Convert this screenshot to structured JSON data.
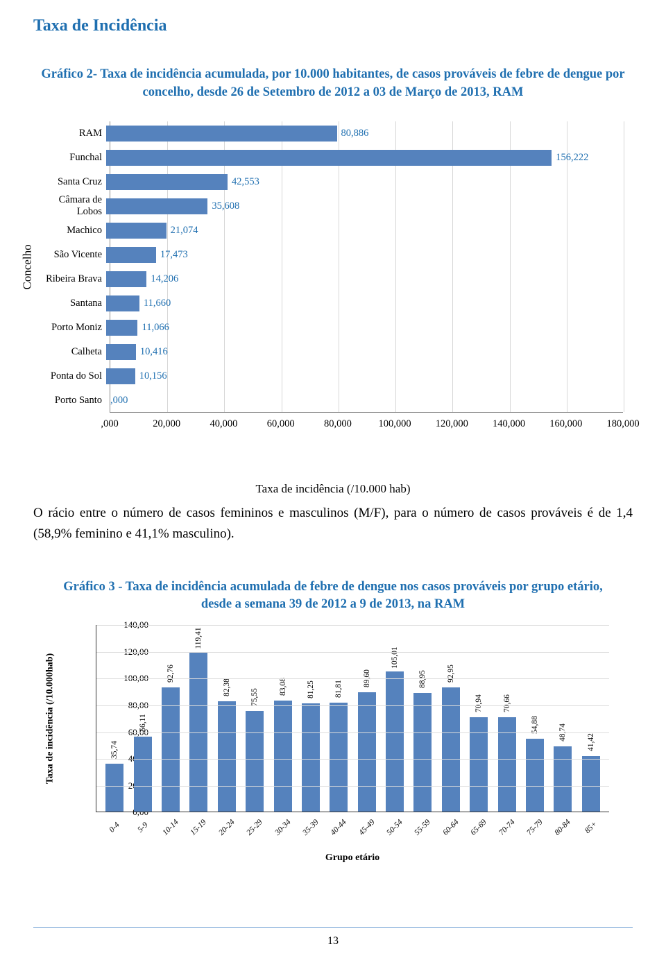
{
  "section_title": "Taxa de Incidência",
  "chart2": {
    "type": "bar-horizontal",
    "caption": "Gráfico 2- Taxa de incidência acumulada, por 10.000 habitantes, de casos prováveis de febre de dengue por concelho, desde 26 de Setembro de 2012 a 03 de Março de 2013, RAM",
    "ylabel": "Concelho",
    "xlabel": "Taxa de incidência (/10.000 hab)",
    "categories": [
      "RAM",
      "Funchal",
      "Santa Cruz",
      "Câmara de Lobos",
      "Machico",
      "São Vicente",
      "Ribeira Brava",
      "Santana",
      "Porto Moniz",
      "Calheta",
      "Ponta do Sol",
      "Porto Santo"
    ],
    "values": [
      80.886,
      156.222,
      42.553,
      35.608,
      21.074,
      17.473,
      14.206,
      11.66,
      11.066,
      10.416,
      10.156,
      0.0
    ],
    "value_labels": [
      "80,886",
      "156,222",
      "42,553",
      "35,608",
      "21,074",
      "17,473",
      "14,206",
      "11,660",
      "11,066",
      "10,416",
      "10,156",
      ",000"
    ],
    "bar_color": "#5582bd",
    "value_label_color": "#1f6fb0",
    "xlim": [
      0,
      180
    ],
    "xtick_step": 20,
    "xtick_labels": [
      ",000",
      "20,000",
      "40,000",
      "60,000",
      "80,000",
      "100,000",
      "120,000",
      "140,000",
      "160,000",
      "180,000"
    ],
    "category_fontsize": 14.5,
    "value_fontsize": 14.5,
    "axis_label_fontsize": 17,
    "grid_color": "#d7d7d7",
    "border_color": "#888888",
    "background_color": "#ffffff"
  },
  "body_paragraph": "O rácio entre o número de casos femininos e masculinos (M/F), para o número de casos prováveis é de 1,4 (58,9% feminino e 41,1% masculino).",
  "chart3": {
    "type": "bar",
    "caption": "Gráfico 3 - Taxa de incidência acumulada de febre de dengue nos casos prováveis por grupo etário, desde a semana 39 de 2012 a 9 de 2013, na RAM",
    "ylabel": "Taxa de incidência (/10.000hab)",
    "xlabel": "Grupo etário",
    "categories": [
      "0-4",
      "5-9",
      "10-14",
      "15-19",
      "20-24",
      "25-29",
      "30-34",
      "35-39",
      "40-44",
      "45-49",
      "50-54",
      "55-59",
      "60-64",
      "65-69",
      "70-74",
      "75-79",
      "80-84",
      "85+"
    ],
    "values": [
      35.74,
      56.11,
      92.76,
      119.41,
      82.38,
      75.55,
      83.08,
      81.25,
      81.81,
      89.6,
      105.01,
      88.95,
      92.95,
      70.94,
      70.66,
      54.88,
      48.74,
      41.42
    ],
    "value_labels": [
      "35,74",
      "56,11",
      "92,76",
      "119,41",
      "82,38",
      "75,55",
      "83,08",
      "81,25",
      "81,81",
      "89,60",
      "105,01",
      "88,95",
      "92,95",
      "70,94",
      "70,66",
      "54,88",
      "48,74",
      "41,42"
    ],
    "bar_color": "#5582bd",
    "ylim": [
      0,
      140
    ],
    "ytick_step": 20,
    "ytick_labels": [
      "0,00",
      "20,00",
      "40,00",
      "60,00",
      "80,00",
      "100,00",
      "120,00",
      "140,00"
    ],
    "grid_color": "#dcdcdc",
    "border_color": "#333333",
    "value_fontsize": 11.5,
    "category_fontsize": 11.5,
    "axis_label_fontsize": 14,
    "background_color": "#ffffff"
  },
  "page_number": "13"
}
